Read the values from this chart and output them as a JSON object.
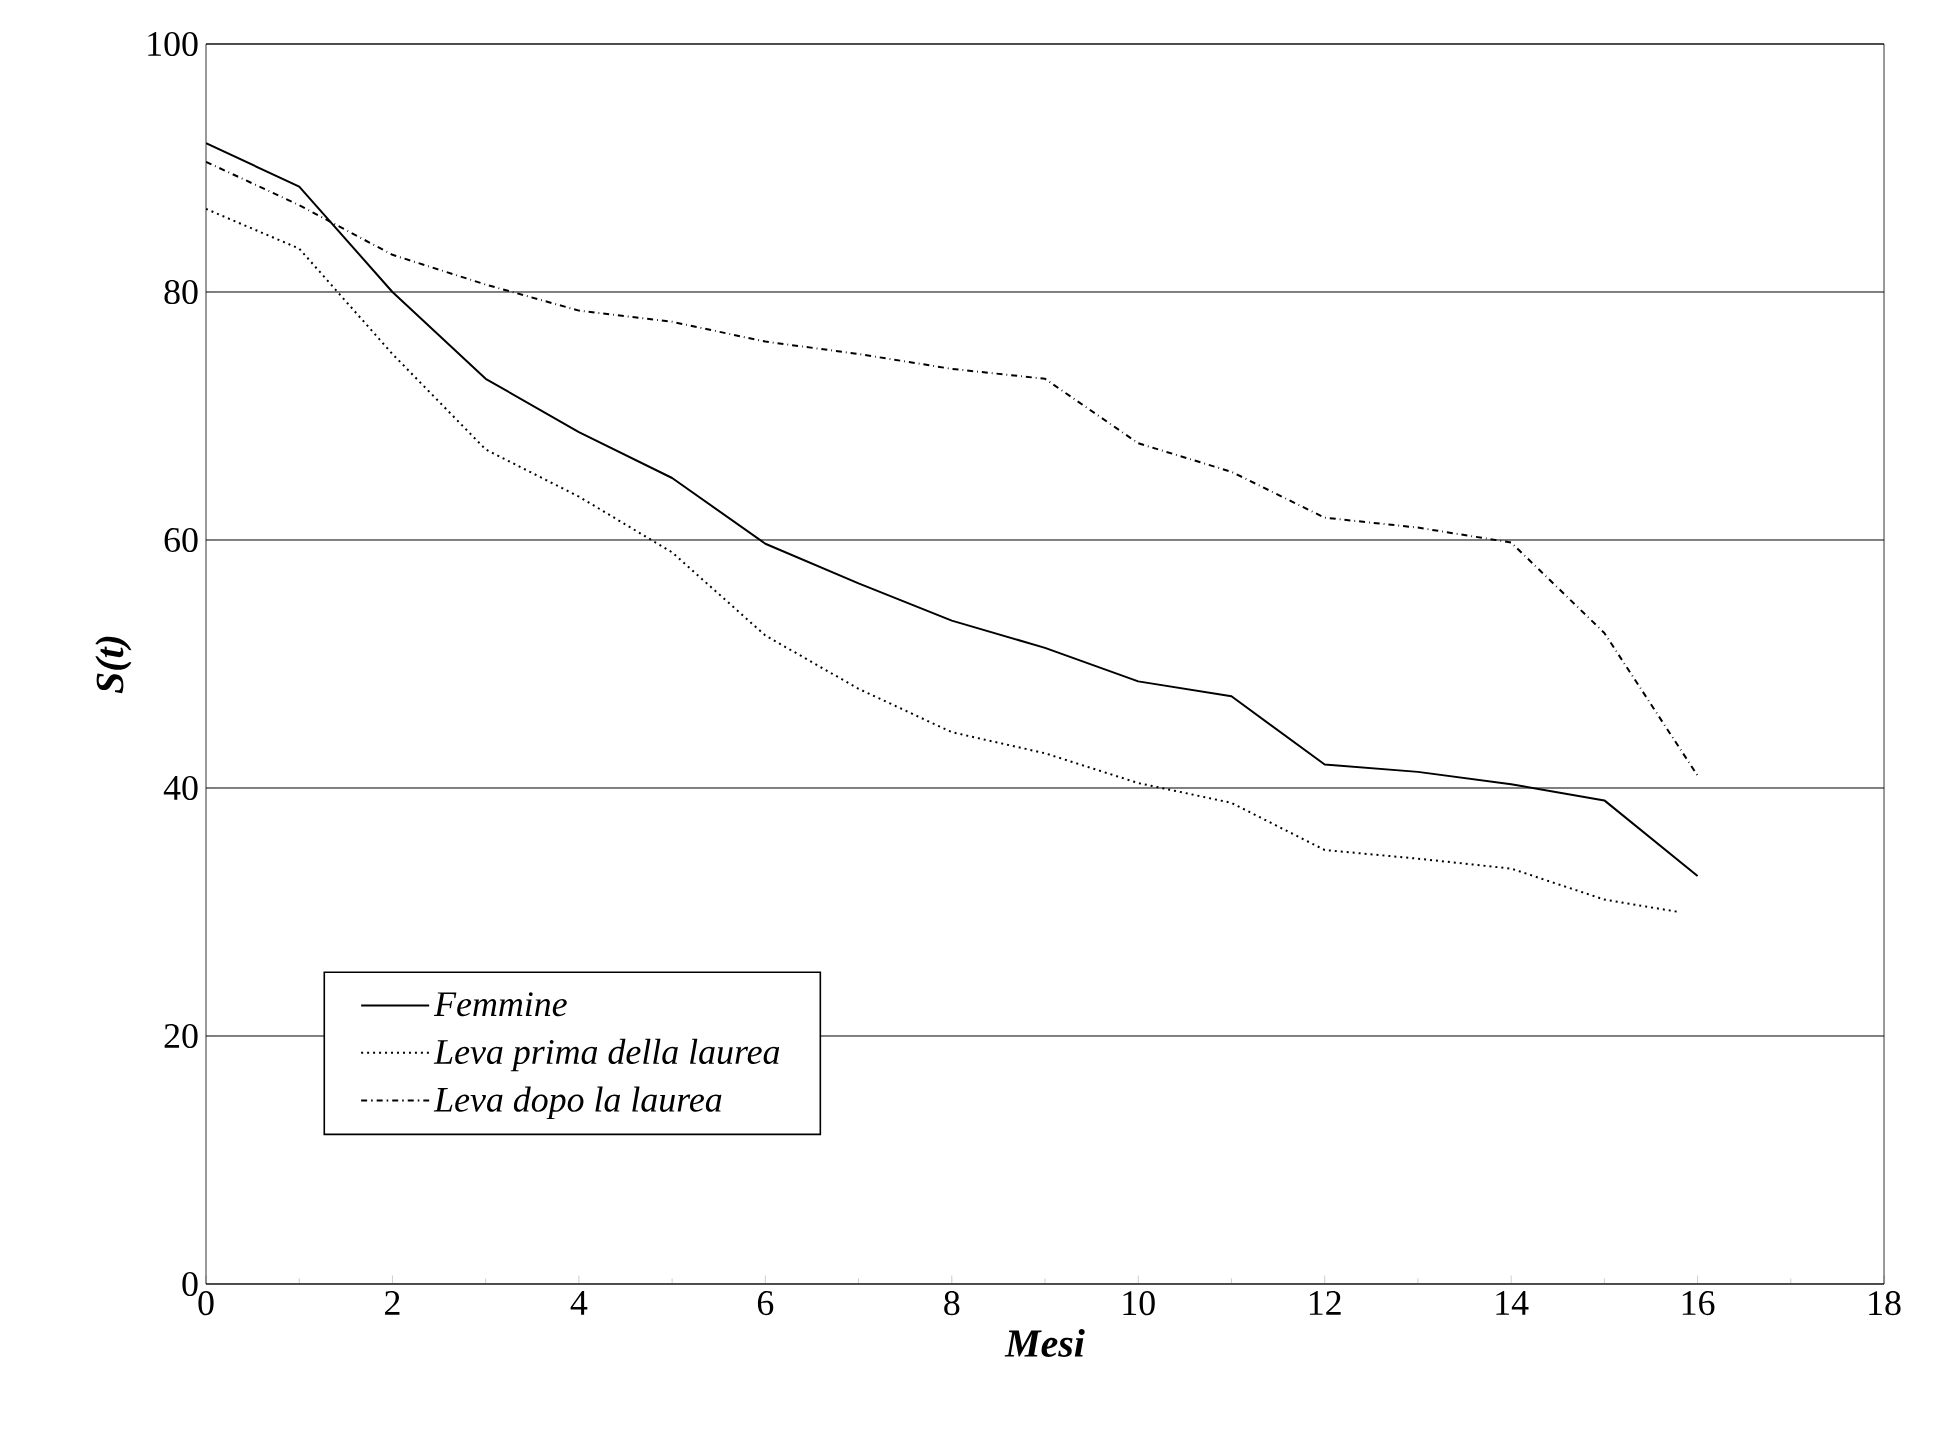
{
  "chart_data": {
    "type": "line",
    "xlabel": "Mesi",
    "ylabel": "S(t)",
    "xlim": [
      0,
      18
    ],
    "xticks": [
      0,
      2,
      4,
      6,
      8,
      10,
      12,
      14,
      16,
      18
    ],
    "ylim": [
      0,
      100
    ],
    "yticks": [
      0,
      20,
      40,
      60,
      80,
      100
    ],
    "grid": "y",
    "legend": "bottom left",
    "marker": "none",
    "series": [
      {
        "name": "Femmine",
        "color": "#000000",
        "line_style": "solid",
        "x": [
          0,
          1,
          2,
          3,
          4,
          5,
          6,
          7,
          8,
          9,
          10,
          11,
          12,
          13,
          14,
          15,
          16
        ],
        "values": [
          92,
          88.5,
          80,
          73,
          68.7,
          65,
          59.7,
          56.5,
          53.5,
          51.3,
          48.6,
          47.4,
          41.9,
          41.3,
          40.3,
          39,
          32.9
        ]
      },
      {
        "name": "Leva prima della laurea",
        "color": "#000000",
        "line_style": "dotted",
        "x": [
          0,
          1,
          2,
          3,
          4,
          5,
          6,
          7,
          8,
          9,
          10,
          11,
          12,
          13,
          14,
          15,
          15.8
        ],
        "values": [
          86.7,
          83.5,
          75,
          67.3,
          63.5,
          59,
          52.3,
          48,
          44.5,
          42.8,
          40.4,
          38.8,
          35,
          34.3,
          33.5,
          31,
          30
        ]
      },
      {
        "name": "Leva dopo la laurea",
        "color": "#000000",
        "line_style": "dashdot",
        "x": [
          0,
          1,
          2,
          3,
          4,
          5,
          6,
          7,
          8,
          9,
          10,
          11,
          12,
          13,
          14,
          15,
          16
        ],
        "values": [
          90.5,
          87,
          83,
          80.6,
          78.5,
          77.6,
          76,
          75,
          73.8,
          73,
          67.8,
          65.5,
          61.8,
          61,
          59.8,
          52.5,
          41
        ]
      }
    ]
  }
}
